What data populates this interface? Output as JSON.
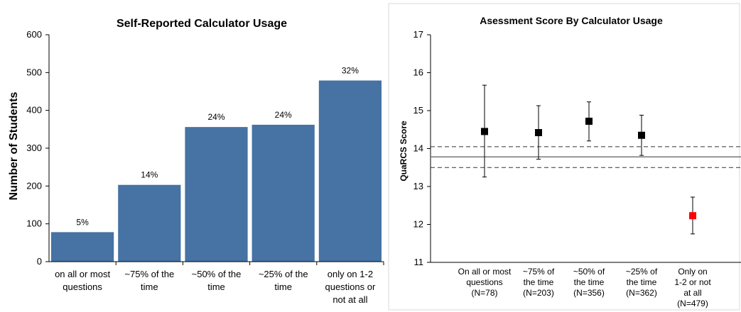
{
  "chart_data": [
    {
      "type": "bar",
      "title": "Self-Reported Calculator Usage",
      "ylabel": "Number of Students",
      "ylim": [
        0,
        600
      ],
      "yticks": [
        0,
        100,
        200,
        300,
        400,
        500,
        600
      ],
      "categories": [
        [
          "on all or most",
          "questions"
        ],
        [
          "~75% of the",
          "time"
        ],
        [
          "~50% of the",
          "time"
        ],
        [
          "~25% of the",
          "time"
        ],
        [
          "only on 1-2",
          "questions or",
          "not at all"
        ]
      ],
      "values": [
        78,
        203,
        356,
        362,
        479
      ],
      "data_labels": [
        "5%",
        "14%",
        "24%",
        "24%",
        "32%"
      ],
      "color": "#4672a4"
    },
    {
      "type": "scatter",
      "title": "Asessment Score By Calculator Usage",
      "ylabel": "QuaRCS Score",
      "ylim": [
        11,
        17
      ],
      "yticks": [
        11,
        12,
        13,
        14,
        15,
        16,
        17
      ],
      "categories": [
        [
          "On all or most",
          "questions",
          "(N=78)"
        ],
        [
          "~75% of",
          "the time",
          "(N=203)"
        ],
        [
          "~50% of",
          "the time",
          "(N=356)"
        ],
        [
          "~25% of",
          "the time",
          "(N=362)"
        ],
        [
          "Only on",
          "1-2 or not",
          "at all",
          "(N=479)"
        ]
      ],
      "values": [
        14.45,
        14.42,
        14.72,
        14.35,
        12.23
      ],
      "err_low": [
        13.25,
        13.72,
        14.2,
        13.82,
        11.75
      ],
      "err_high": [
        15.67,
        15.13,
        15.23,
        14.88,
        12.72
      ],
      "point_colors": [
        "#000000",
        "#000000",
        "#000000",
        "#000000",
        "#ff0000"
      ],
      "mean_line": 13.78,
      "mean_band": [
        13.5,
        14.05
      ]
    }
  ]
}
